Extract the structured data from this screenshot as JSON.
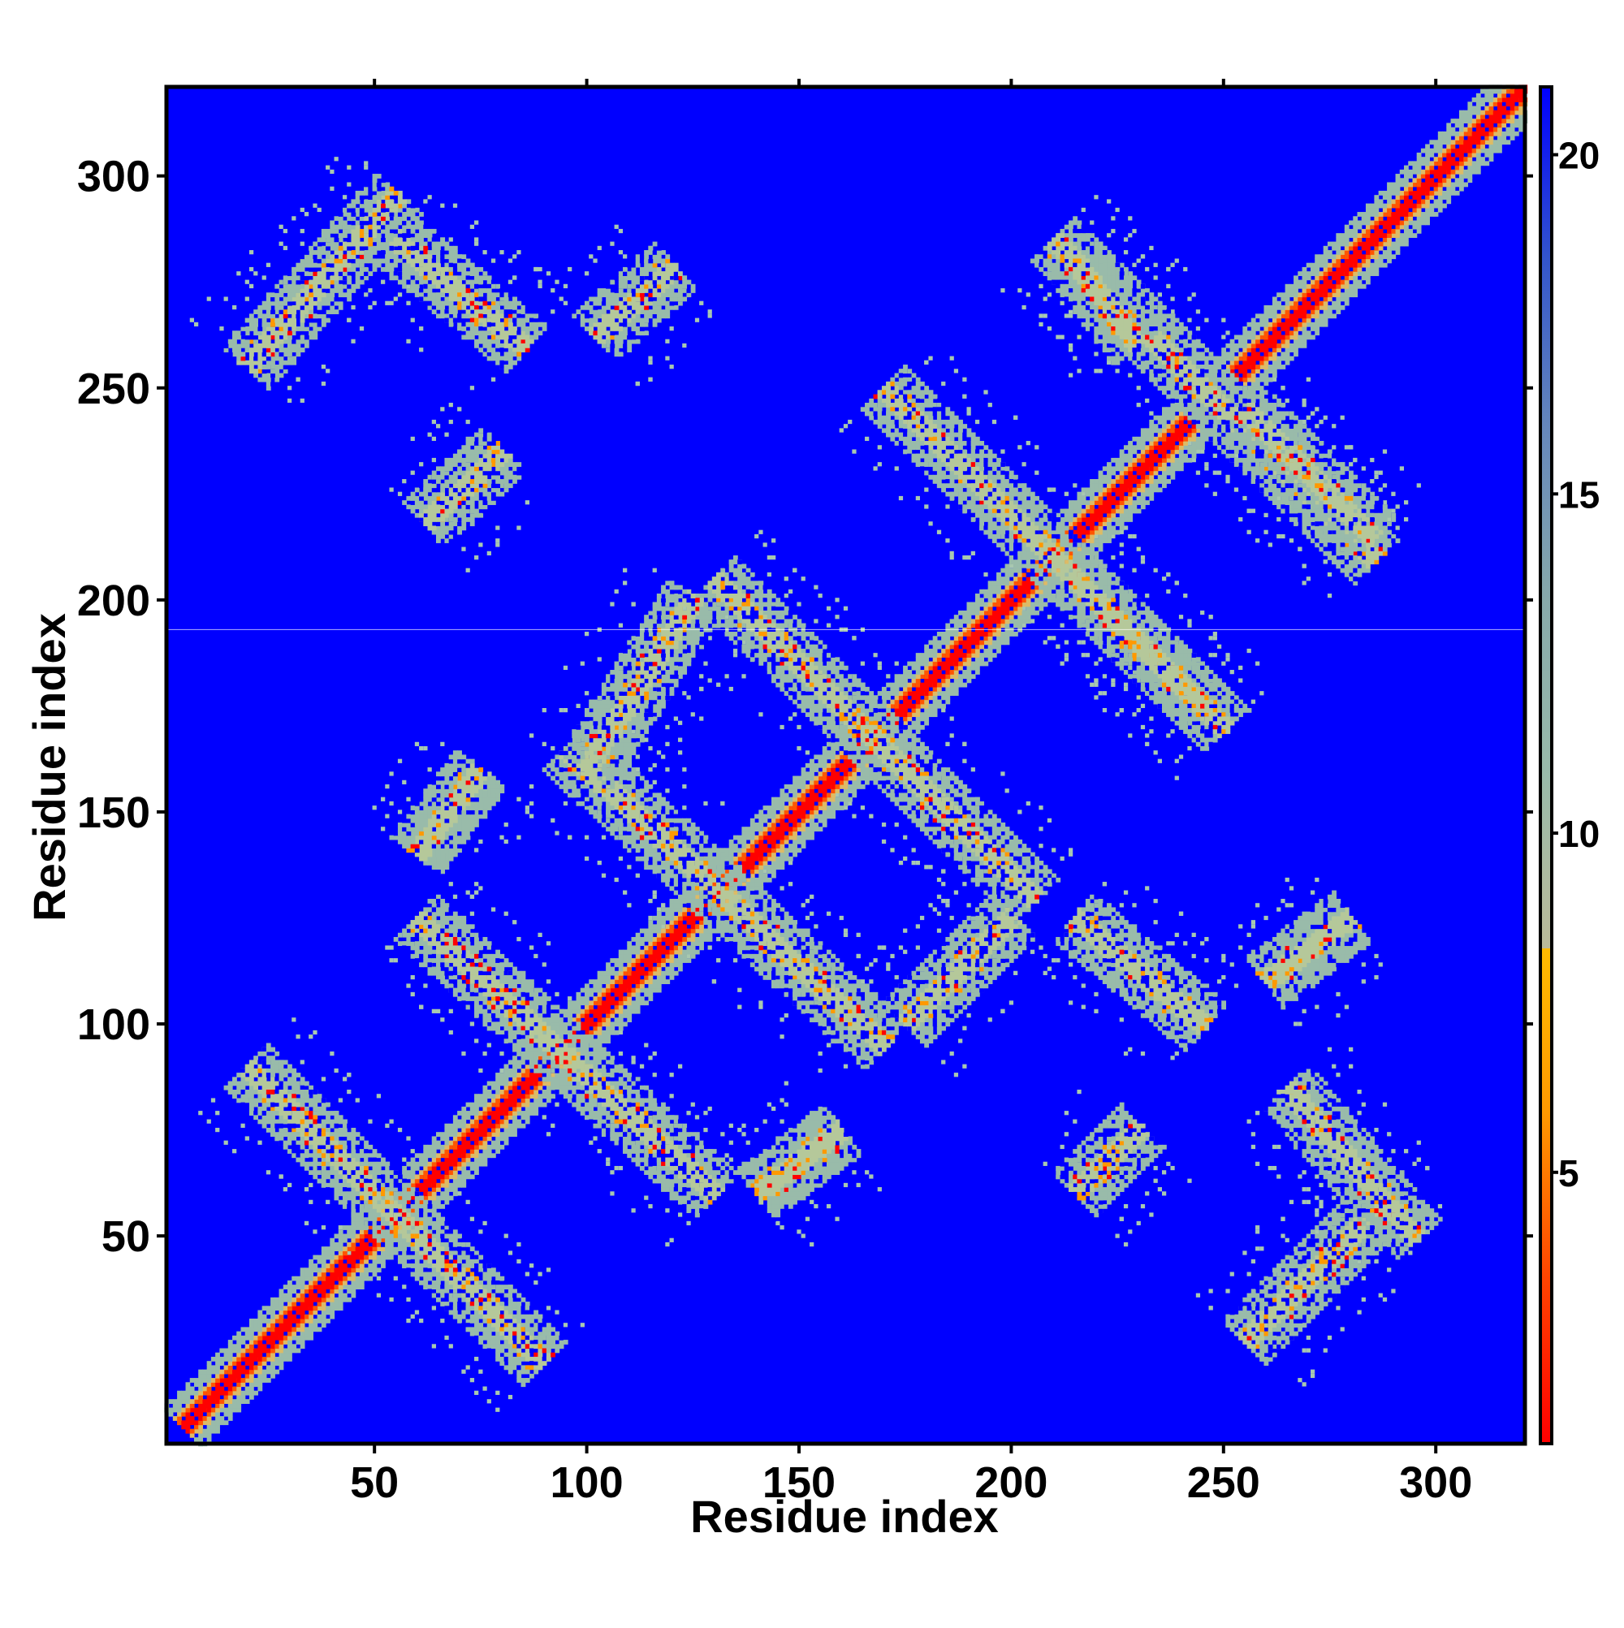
{
  "chart_data": {
    "type": "heatmap",
    "title": "",
    "xlabel": "Residue index",
    "ylabel": "Residue index",
    "xlim": [
      1,
      321
    ],
    "ylim": [
      1,
      321
    ],
    "x_ticks": [
      50,
      100,
      150,
      200,
      250,
      300
    ],
    "y_ticks": [
      50,
      100,
      150,
      200,
      250,
      300
    ],
    "colorbar": {
      "range": [
        1,
        21
      ],
      "ticks": [
        5,
        10,
        15,
        20
      ],
      "colors": [
        "#ff0000",
        "#ff4400",
        "#ff9900",
        "#ffbb00",
        "#bbbb99",
        "#99bbaa",
        "#88aaaa",
        "#6688bb",
        "#3355cc",
        "#0000ff"
      ],
      "threshold": 8.3
    },
    "background_color": "#0000ff",
    "diagonal_color": "#ff0000",
    "colors": {
      "background": "#0000ff",
      "contact_core": "#ff0000",
      "contact_mid": "#ff9900",
      "contact_edge": "#99bbaa",
      "sparse": "#a8c8b0"
    },
    "grid": false,
    "contact_bands": [
      {
        "start": [
          5,
          5
        ],
        "end": [
          321,
          321
        ],
        "orientation": "diagonal"
      },
      {
        "start": [
          20,
          90
        ],
        "end": [
          90,
          20
        ],
        "orientation": "antiparallel"
      },
      {
        "start": [
          60,
          125
        ],
        "end": [
          130,
          60
        ],
        "orientation": "antiparallel"
      },
      {
        "start": [
          95,
          165
        ],
        "end": [
          170,
          95
        ],
        "orientation": "antiparallel"
      },
      {
        "start": [
          130,
          205
        ],
        "end": [
          205,
          130
        ],
        "orientation": "antiparallel"
      },
      {
        "start": [
          170,
          250
        ],
        "end": [
          250,
          170
        ],
        "orientation": "antiparallel"
      },
      {
        "start": [
          210,
          285
        ],
        "end": [
          285,
          210
        ],
        "orientation": "antiparallel"
      },
      {
        "start": [
          20,
          255
        ],
        "end": [
          55,
          295
        ],
        "orientation": "parallel"
      },
      {
        "start": [
          55,
          285
        ],
        "end": [
          85,
          260
        ],
        "orientation": "antiparallel"
      },
      {
        "start": [
          62,
          218
        ],
        "end": [
          80,
          235
        ],
        "orientation": "parallel"
      },
      {
        "start": [
          102,
          262
        ],
        "end": [
          120,
          278
        ],
        "orientation": "parallel"
      },
      {
        "start": [
          100,
          160
        ],
        "end": [
          125,
          200
        ],
        "orientation": "parallel"
      },
      {
        "start": [
          140,
          60
        ],
        "end": [
          160,
          75
        ],
        "orientation": "parallel"
      },
      {
        "start": [
          60,
          140
        ],
        "end": [
          75,
          160
        ],
        "orientation": "parallel"
      },
      {
        "start": [
          175,
          100
        ],
        "end": [
          200,
          125
        ],
        "orientation": "parallel"
      },
      {
        "start": [
          215,
          280
        ],
        "end": [
          230,
          260
        ],
        "orientation": "parallel"
      },
      {
        "start": [
          255,
          245
        ],
        "end": [
          285,
          215
        ],
        "orientation": "antiparallel"
      },
      {
        "start": [
          215,
          205
        ],
        "end": [
          245,
          175
        ],
        "orientation": "antiparallel"
      },
      {
        "start": [
          215,
          125
        ],
        "end": [
          245,
          100
        ],
        "orientation": "antiparallel"
      },
      {
        "start": [
          260,
          110
        ],
        "end": [
          280,
          125
        ],
        "orientation": "parallel"
      },
      {
        "start": [
          215,
          60
        ],
        "end": [
          230,
          75
        ],
        "orientation": "parallel"
      },
      {
        "start": [
          255,
          25
        ],
        "end": [
          285,
          55
        ],
        "orientation": "parallel"
      },
      {
        "start": [
          265,
          85
        ],
        "end": [
          295,
          50
        ],
        "orientation": "antiparallel"
      }
    ]
  }
}
